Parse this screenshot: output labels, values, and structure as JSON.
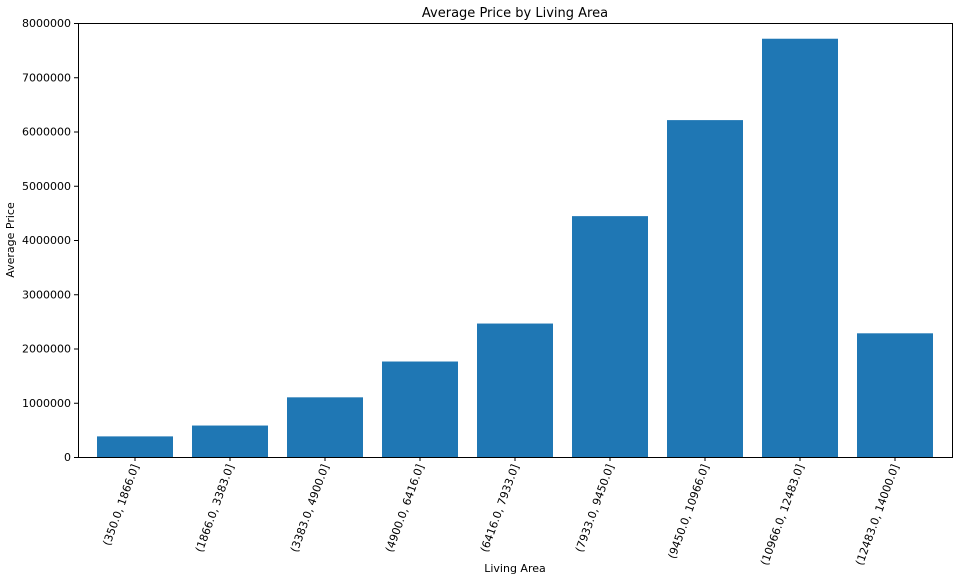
{
  "chart_data": {
    "type": "bar",
    "title": "Average Price by Living Area",
    "xlabel": "Living Area",
    "ylabel": "Average Price",
    "categories": [
      "(350.0, 1866.0]",
      "(1866.0, 3383.0]",
      "(3383.0, 4900.0]",
      "(4900.0, 6416.0]",
      "(6416.0, 7933.0]",
      "(7933.0, 9450.0]",
      "(9450.0, 10966.0]",
      "(10966.0, 12483.0]",
      "(12483.0, 14000.0]"
    ],
    "values": [
      380000,
      580000,
      1100000,
      1760000,
      2460000,
      4440000,
      6210000,
      7710000,
      2280000
    ],
    "ylim": [
      0,
      8000000
    ],
    "yticks": [
      0,
      1000000,
      2000000,
      3000000,
      4000000,
      5000000,
      6000000,
      7000000,
      8000000
    ],
    "xtick_rotation_deg": -70,
    "grid": false,
    "legend": "none",
    "bar_color": "#1f77b4"
  }
}
